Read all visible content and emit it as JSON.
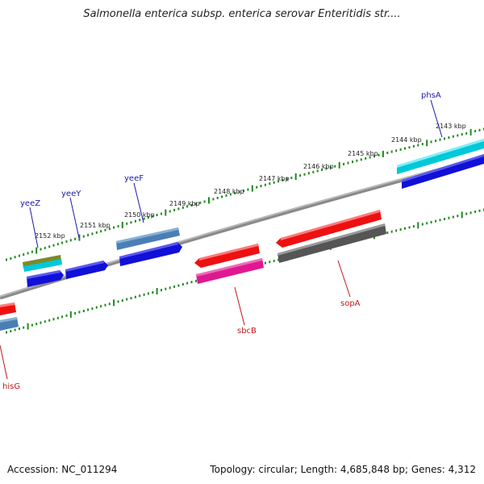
{
  "title": "Salmonella enterica subsp. enterica serovar Enteritidis str....",
  "footer": {
    "accession": "Accession: NC_011294",
    "stats": "Topology: circular; Length: 4,685,848 bp; Genes: 4,312"
  },
  "colors": {
    "backbone": "#8a8a8a",
    "tick": "#1f8a1f",
    "forward_label": "#1a1aa8",
    "reverse_label": "#c01818"
  },
  "scale_labels": [
    "2143 kbp",
    "2144 kbp",
    "2145 kbp",
    "2146 kbp",
    "2147 kbp",
    "2148 kbp",
    "2149 kbp",
    "2150 kbp",
    "2151 kbp",
    "2152 kbp"
  ],
  "gene_labels": [
    {
      "text": "phsA",
      "strand": "forward"
    },
    {
      "text": "yeeF",
      "strand": "forward"
    },
    {
      "text": "yeeY",
      "strand": "forward"
    },
    {
      "text": "yeeZ",
      "strand": "forward"
    },
    {
      "text": "sopA",
      "strand": "reverse"
    },
    {
      "text": "sbcB",
      "strand": "reverse"
    },
    {
      "text": "hisG",
      "strand": "reverse"
    }
  ]
}
